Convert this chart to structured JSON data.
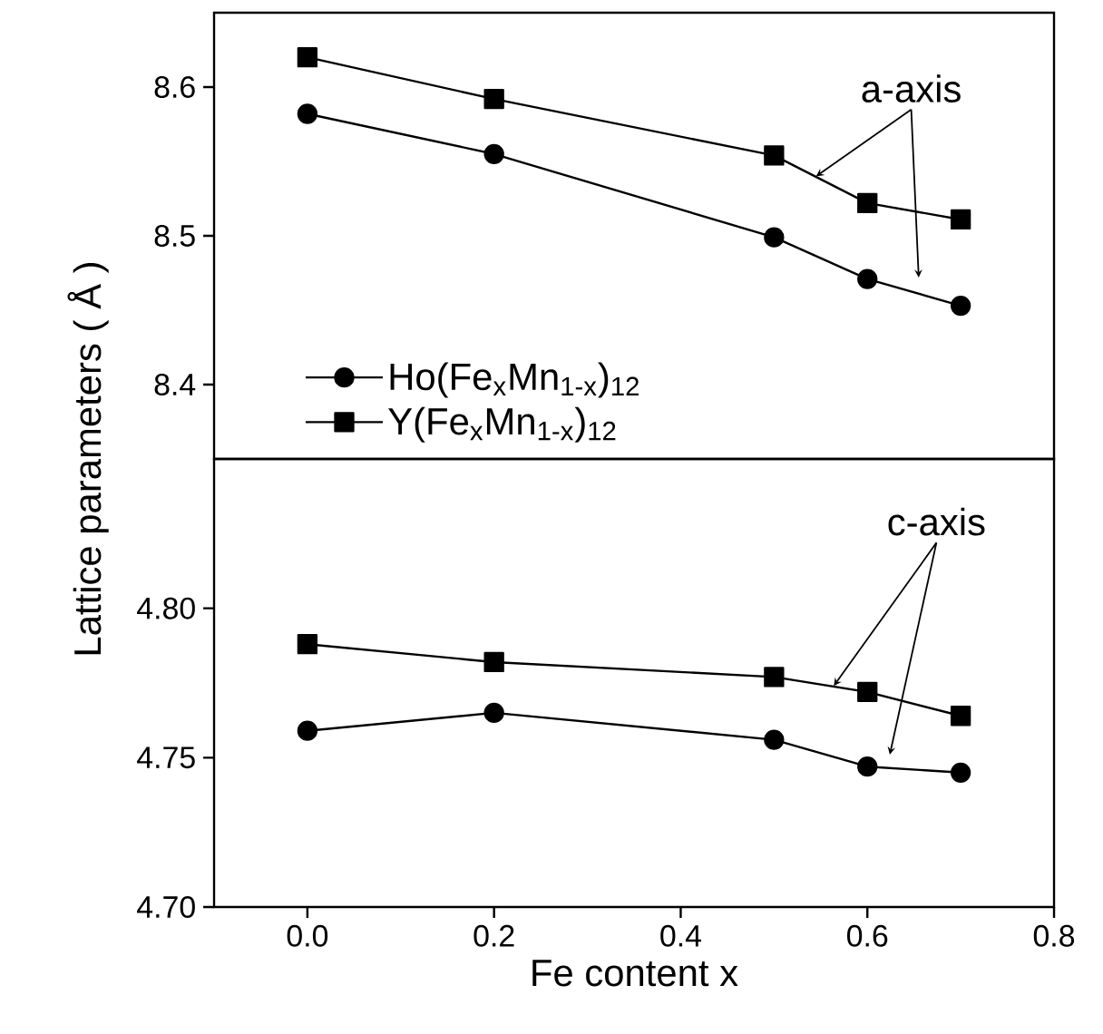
{
  "chart_data": [
    {
      "type": "line",
      "ylabel": "Lattice parameters ( Å )",
      "annotations": [
        {
          "text": "a-axis",
          "x": 0.545,
          "y": 8.54
        }
      ],
      "xlim": [
        -0.1,
        0.8
      ],
      "ylim": [
        8.35,
        8.65
      ],
      "yticks": [
        8.4,
        8.5,
        8.6
      ],
      "tick_labels": "y",
      "legend": "bottom left",
      "x": [
        0,
        0.2,
        0.5,
        0.6,
        0.7
      ],
      "series": [
        {
          "name": "Ho(Fe$_{x}$Mn$_{1-x}$)$_{12}$",
          "color": "#000000",
          "marker": "circle",
          "values": [
            8.582,
            8.555,
            8.499,
            8.471,
            8.453
          ]
        },
        {
          "name": "Y(Fe$_{x}$Mn$_{1-x}$)$_{12}$",
          "color": "#000000",
          "marker": "square",
          "values": [
            8.62,
            8.592,
            8.554,
            8.522,
            8.511
          ]
        }
      ]
    },
    {
      "type": "line",
      "xlabel": "Fe content x",
      "annotations": [
        {
          "text": "c-axis",
          "x": 0.564,
          "y": 4.774
        }
      ],
      "xlim": [
        -0.1,
        0.8
      ],
      "ylim": [
        4.7,
        4.85
      ],
      "xticks": [
        {
          "value": 0,
          "label": "0.0"
        },
        0.2,
        0.4,
        0.6,
        0.8
      ],
      "yticks": [
        {
          "value": 4.7,
          "label": "4.70"
        },
        4.75,
        {
          "value": 4.8,
          "label": "4.80"
        }
      ],
      "x": [
        0,
        0.2,
        0.5,
        0.6,
        0.7
      ],
      "series": [
        {
          "color": "#000000",
          "marker": "circle",
          "values": [
            4.759,
            4.765,
            4.756,
            4.747,
            4.745
          ]
        },
        {
          "color": "#000000",
          "marker": "square",
          "values": [
            4.788,
            4.782,
            4.777,
            4.772,
            4.764
          ]
        }
      ]
    }
  ]
}
